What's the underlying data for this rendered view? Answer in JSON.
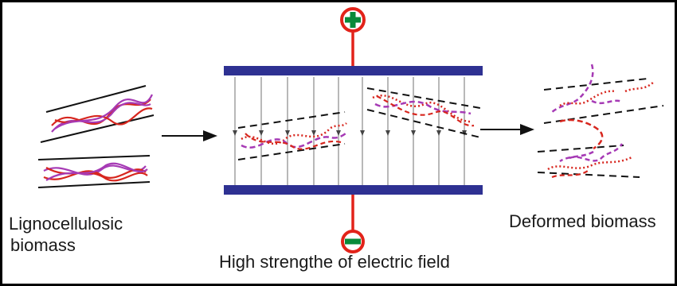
{
  "labels": {
    "input_line1": "Lignocellulosic",
    "input_line2": "biomass",
    "output": "Deformed biomass",
    "field": "High strengthe of electric field"
  },
  "electrodes": {
    "positive_symbol": "+",
    "negative_symbol": "−",
    "colors": {
      "terminal_ring": "#e2231a",
      "terminal_sign": "#0a8a3a",
      "plate": "#2e3192"
    }
  },
  "fiber_colors": {
    "red": "#d7261e",
    "purple": "#a63ab5",
    "outline": "#111111"
  },
  "icons": [
    "arrow-right-icon",
    "positive-terminal-icon",
    "negative-terminal-icon"
  ]
}
